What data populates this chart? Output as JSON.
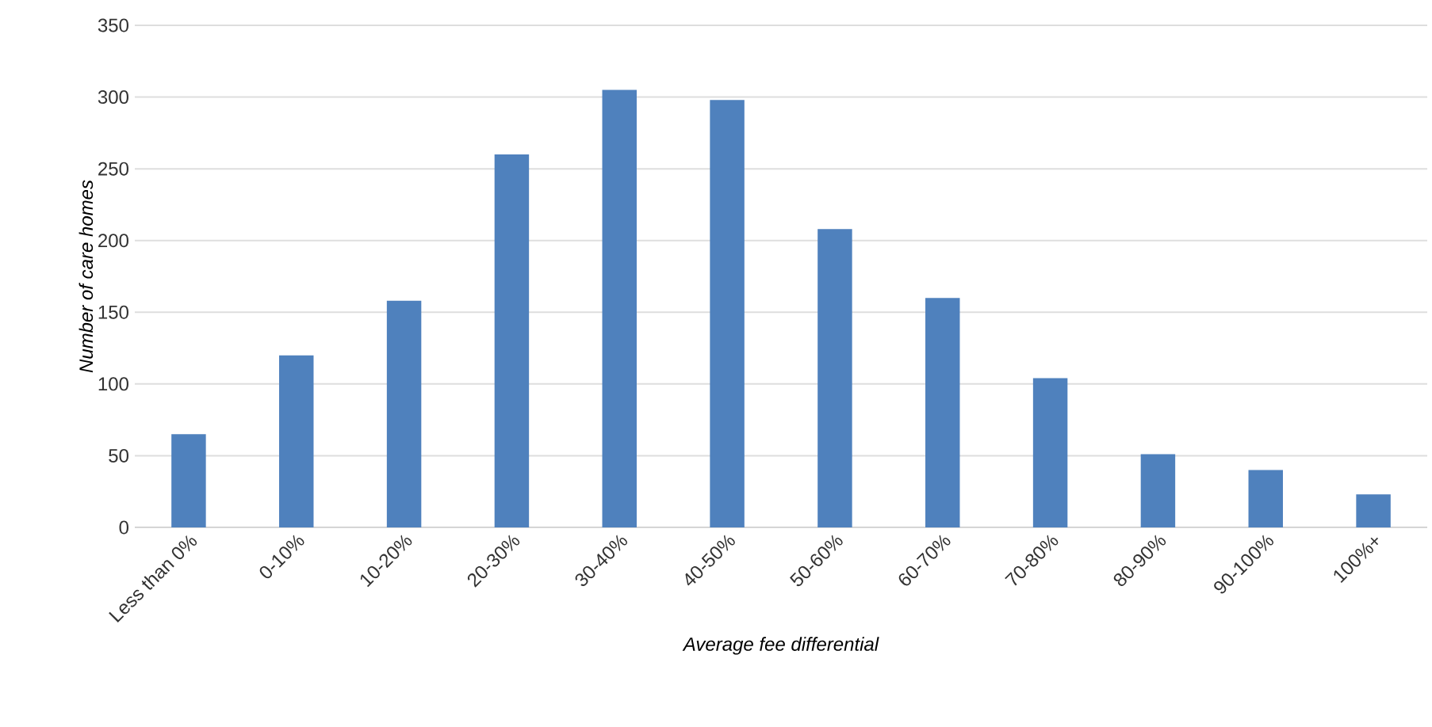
{
  "chart_data": {
    "type": "bar",
    "xlabel": "Average fee differential",
    "ylabel": "Number of care homes",
    "categories": [
      "Less than 0%",
      "0-10%",
      "10-20%",
      "20-30%",
      "30-40%",
      "40-50%",
      "50-60%",
      "60-70%",
      "70-80%",
      "80-90%",
      "90-100%",
      "100%+"
    ],
    "values": [
      65,
      120,
      158,
      260,
      305,
      298,
      208,
      160,
      104,
      51,
      40,
      23
    ],
    "color": "#4f81bd",
    "ylim": [
      0,
      350
    ],
    "yticks": [
      0,
      50,
      100,
      150,
      200,
      250,
      300,
      350
    ],
    "grid": "y"
  }
}
